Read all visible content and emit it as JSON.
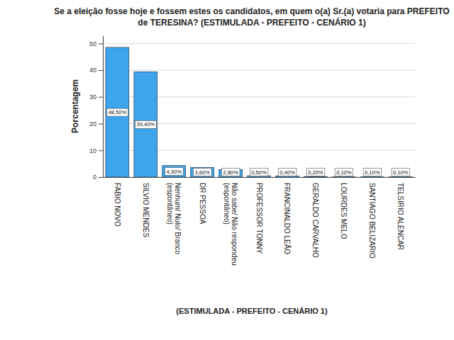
{
  "chart_data": {
    "type": "bar",
    "title": "Se a eleição fosse hoje e fossem estes os candidatos, em quem o(a) Sr.(a) votaria para PREFEITO de TERESINA? (ESTIMULADA - PREFEITO - CENÁRIO 1)",
    "x_label": "(ESTIMULADA - PREFEITO - CENÁRIO 1)",
    "y_label": "Porcentagem",
    "categories": [
      "FABIO NOVO",
      "SILVIO MENDES",
      "Nenhum/ Nulo/ Branco (espontâneo)",
      "DR PESSOA",
      "Não sabe/ Não respondeu (espontâneo)",
      "PROFESSOR TONNY",
      "FRANCINALDO LEÃO",
      "GERALDO CARVALHO",
      "LOURDES MELO",
      "SANTIAGO BELIZARIO",
      "TELSIRIO ALENCAR"
    ],
    "values": [
      48.5,
      39.4,
      4.3,
      3.6,
      2.8,
      0.5,
      0.4,
      0.2,
      0.1,
      0.1,
      0.1
    ],
    "value_labels": [
      "48,50%",
      "39,40%",
      "4,30%",
      "3,60%",
      "2,80%",
      "0,50%",
      "0,40%",
      "0,20%",
      "0,10%",
      "0,10%",
      "0,10%"
    ],
    "data_labels": true,
    "color": "#3ea4ec",
    "ylim": [
      0,
      53
    ],
    "yticks": [
      0,
      10,
      20,
      30,
      40,
      50
    ],
    "grid": true
  }
}
